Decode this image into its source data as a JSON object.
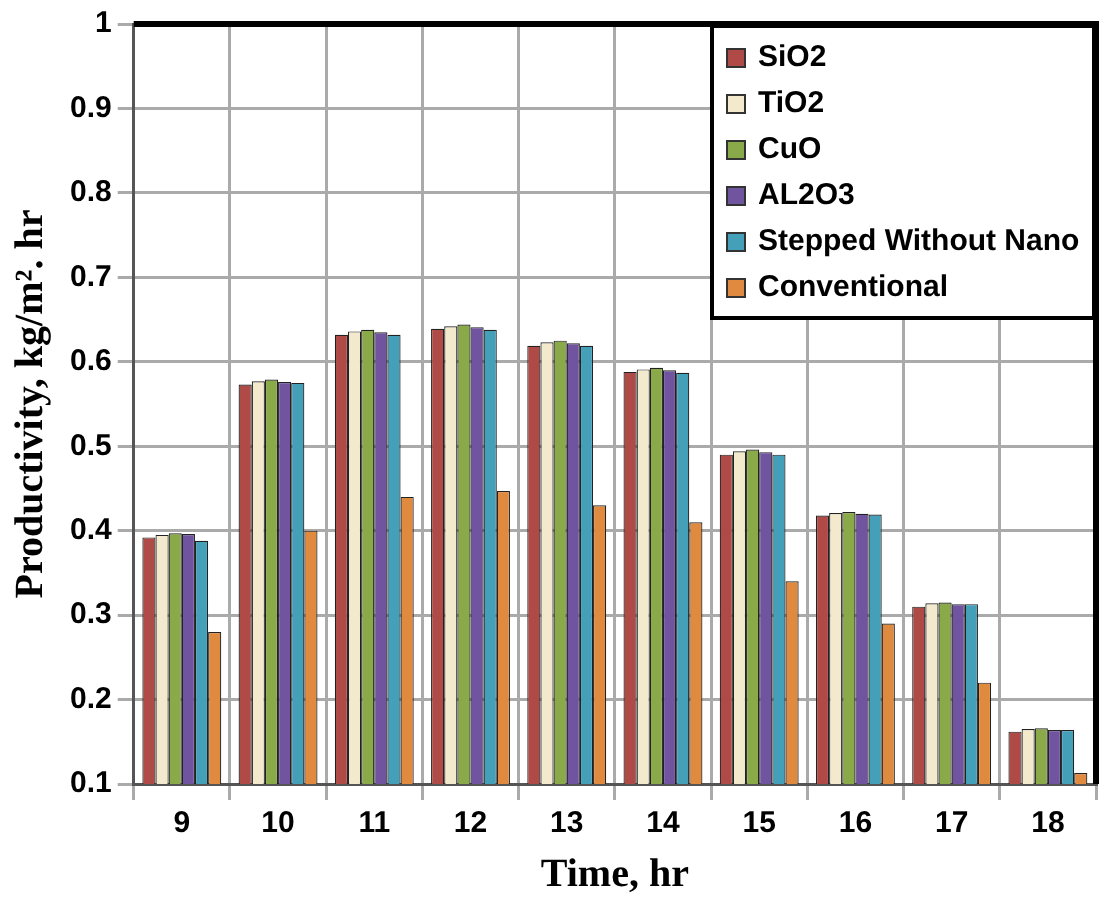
{
  "chart_data": {
    "type": "bar",
    "xlabel": "Time, hr",
    "ylabel": "Productivity, kg/m². hr",
    "categories": [
      "9",
      "10",
      "11",
      "12",
      "13",
      "14",
      "15",
      "16",
      "17",
      "18"
    ],
    "series": [
      {
        "name": "SiO2",
        "color": "#b04a46",
        "values": [
          0.392,
          0.573,
          0.632,
          0.639,
          0.619,
          0.588,
          0.49,
          0.418,
          0.31,
          0.162
        ]
      },
      {
        "name": "TiO2",
        "color": "#f3e9cc",
        "values": [
          0.395,
          0.577,
          0.636,
          0.642,
          0.623,
          0.591,
          0.494,
          0.421,
          0.314,
          0.165
        ]
      },
      {
        "name": "CuO",
        "color": "#8aaa4a",
        "values": [
          0.397,
          0.579,
          0.638,
          0.644,
          0.625,
          0.593,
          0.496,
          0.422,
          0.315,
          0.166
        ]
      },
      {
        "name": "AL2O3",
        "color": "#7054a0",
        "values": [
          0.396,
          0.576,
          0.635,
          0.641,
          0.622,
          0.59,
          0.493,
          0.42,
          0.313,
          0.164
        ]
      },
      {
        "name": "Stepped Without Nano",
        "color": "#43a0b8",
        "values": [
          0.388,
          0.575,
          0.632,
          0.638,
          0.619,
          0.587,
          0.49,
          0.419,
          0.313,
          0.164
        ]
      },
      {
        "name": "Conventional",
        "color": "#e08a40",
        "values": [
          0.28,
          0.4,
          0.44,
          0.447,
          0.43,
          0.41,
          0.34,
          0.29,
          0.22,
          0.113
        ]
      }
    ],
    "ylim": [
      0.1,
      1
    ],
    "yticks": [
      0.1,
      0.2,
      0.3,
      0.4,
      0.5,
      0.6,
      0.7,
      0.8,
      0.9,
      1
    ],
    "grid": true,
    "legend": "top right"
  }
}
